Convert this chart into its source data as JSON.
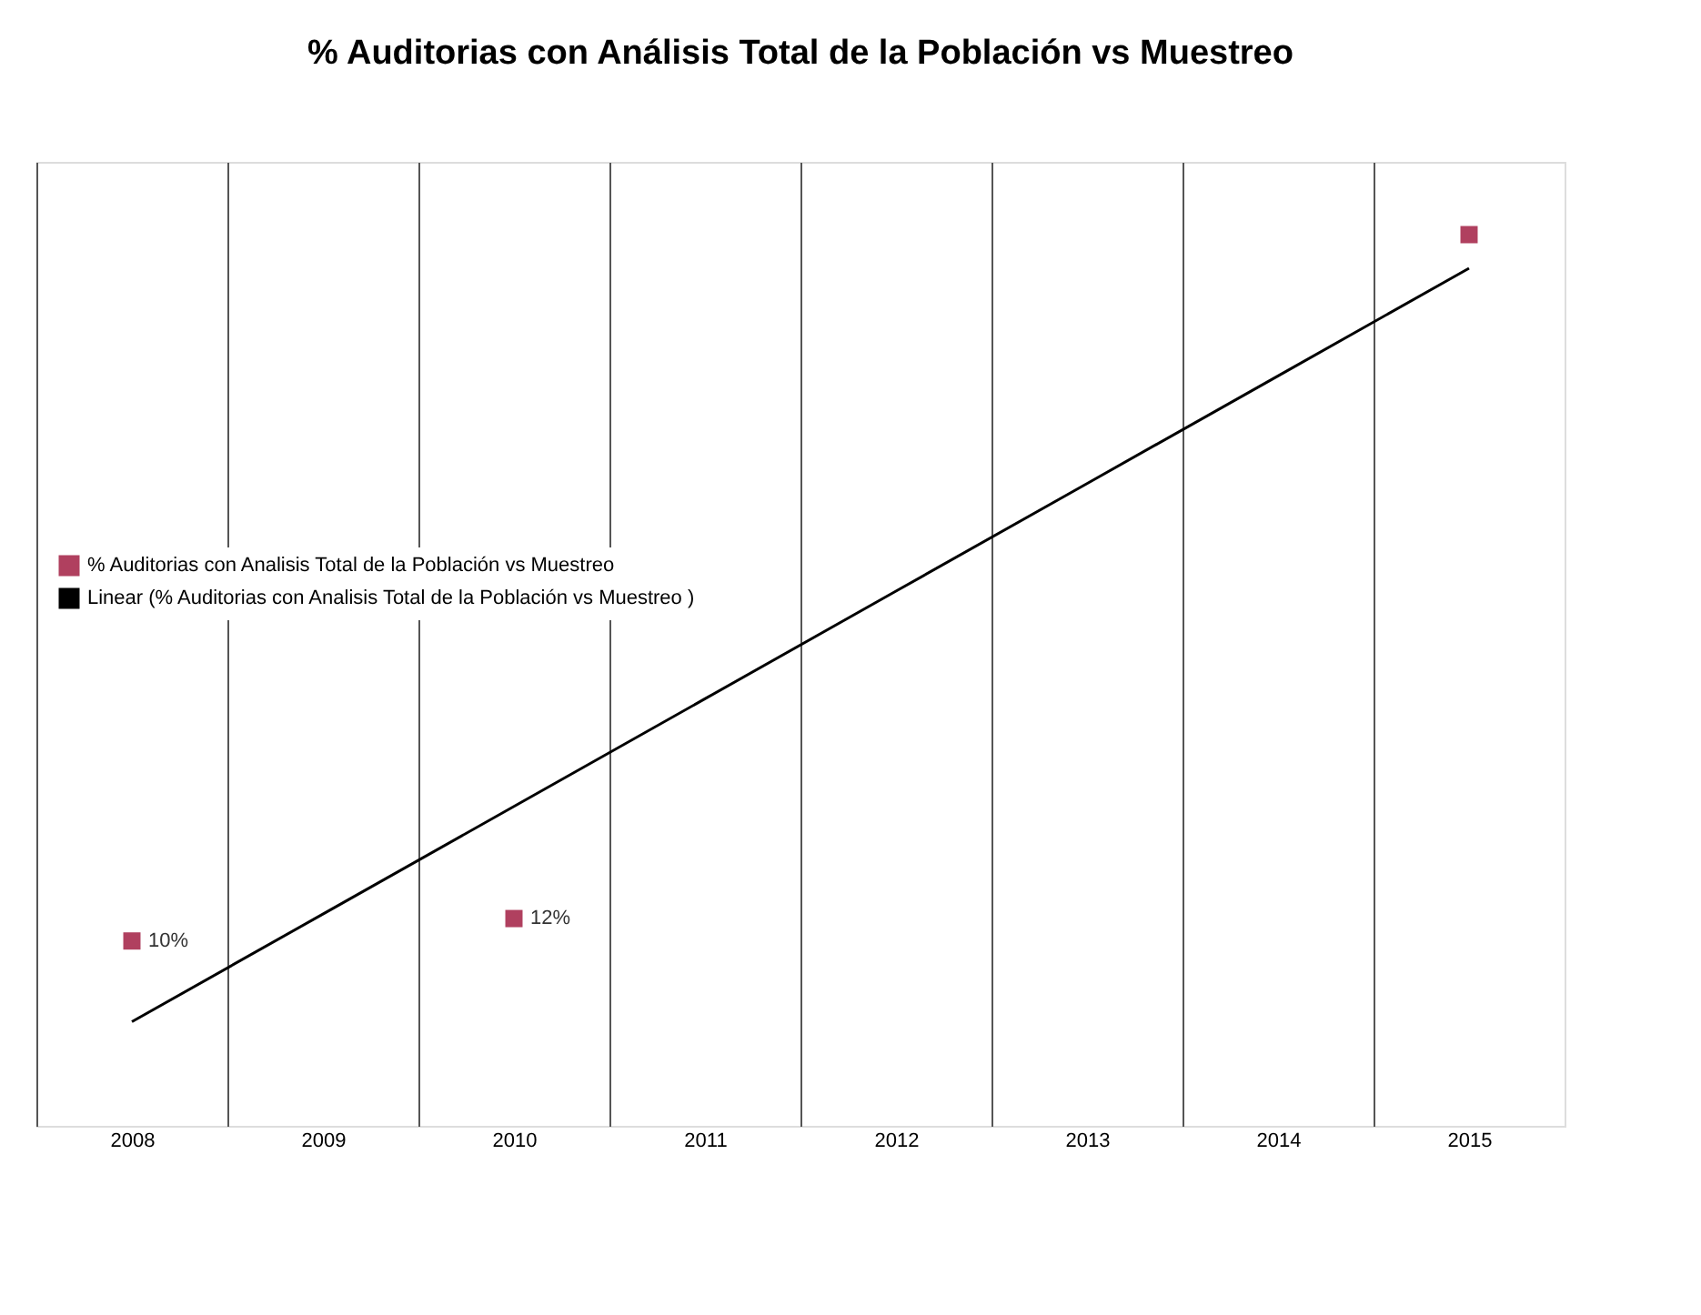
{
  "chart_data": {
    "type": "scatter",
    "title": "% Auditorias con Análisis Total de la Población vs Muestreo",
    "categories": [
      "2008",
      "2009",
      "2010",
      "2011",
      "2012",
      "2013",
      "2014",
      "2015"
    ],
    "tick_labels": "x",
    "grid": "x",
    "legend": "left",
    "series": [
      {
        "name": "% Auditorias con Analisis Total de la Población vs Muestreo",
        "marker": "square",
        "color": "#b0405f",
        "values": [
          10,
          null,
          12,
          null,
          null,
          null,
          null,
          73
        ],
        "value_labels": [
          "10%",
          null,
          "12%",
          null,
          null,
          null,
          null,
          null
        ]
      },
      {
        "name": "Linear (% Auditorias con Analisis Total de la Población vs Muestreo )",
        "type": "line",
        "color": "#000000",
        "line_style": "solid",
        "values": [
          2.8,
          12.4,
          22,
          31.6,
          41.2,
          50.8,
          60.4,
          70
        ]
      }
    ]
  }
}
